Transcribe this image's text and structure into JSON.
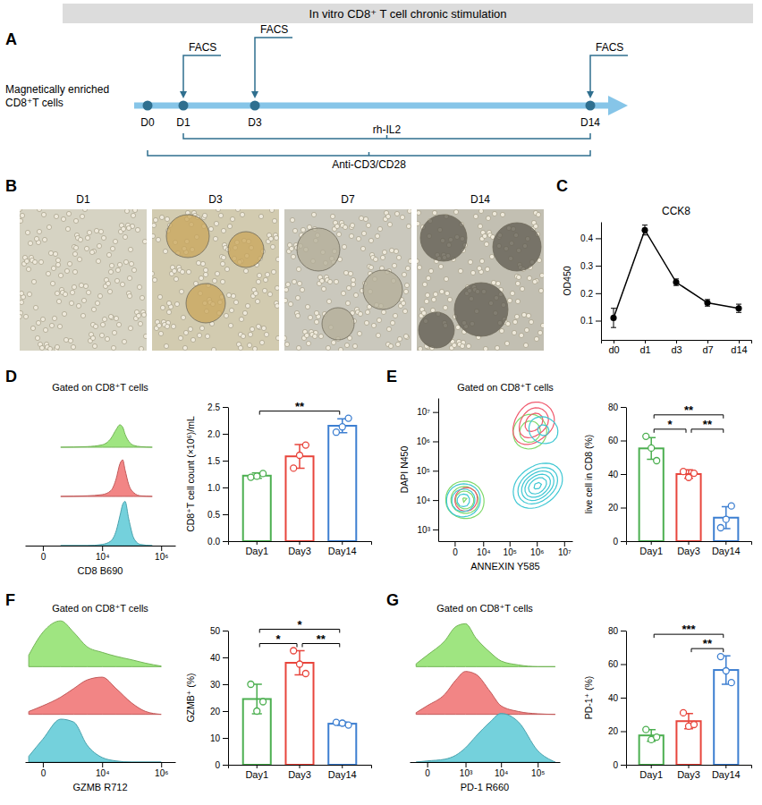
{
  "panels": [
    "A",
    "B",
    "C",
    "D",
    "E",
    "F",
    "G"
  ],
  "diagram": {
    "title": "In vitro CD8⁺ T cell chronic stimulation",
    "start_label": "Magnetically enriched CD8⁺T cells",
    "days": [
      "D0",
      "D1",
      "D3",
      "D14"
    ],
    "facs_label": "FACS",
    "facs_days": [
      "D1",
      "D3",
      "D14"
    ],
    "treatments": [
      {
        "label": "rh-IL2",
        "from": "D1",
        "to": "D14"
      },
      {
        "label": "Anti-CD3/CD28",
        "from": "D0",
        "to": "D14"
      }
    ]
  },
  "images": {
    "labels": [
      "D1",
      "D3",
      "D7",
      "D14"
    ]
  },
  "chart_data": [
    {
      "type": "line",
      "title": "CCK8",
      "y_label": "OD450",
      "categories": [
        "d0",
        "d1",
        "d3",
        "d7",
        "d14"
      ],
      "values": [
        0.11,
        0.43,
        0.24,
        0.165,
        0.145
      ],
      "errors": [
        0.035,
        0.018,
        0.012,
        0.012,
        0.015
      ],
      "ylim": [
        0.03,
        0.46
      ],
      "yticks": [
        0.1,
        0.2,
        0.3,
        0.4
      ],
      "color": "#000000",
      "marker": "circle"
    },
    {
      "type": "area",
      "title": "Gated on CD8⁺T cells",
      "x_label": "CD8 B690",
      "log": "x",
      "tick_labels": "x",
      "x": [
        300,
        3000,
        10000,
        20000,
        30000,
        40000,
        50000,
        60000,
        80000,
        120000,
        200000,
        500000
      ],
      "xlim": [
        -300,
        3000000
      ],
      "xticks": [
        0,
        {
          "value": 10000,
          "label": "10⁴"
        },
        {
          "value": 1000000,
          "label": "10⁶"
        }
      ],
      "ylim": [
        0,
        100
      ],
      "series": [
        {
          "color": "#8ee06b",
          "values": [
            0,
            1,
            4,
            15,
            30,
            38,
            34,
            22,
            10,
            3,
            1,
            0
          ]
        },
        {
          "color": "#f07070",
          "values": [
            0,
            1,
            3,
            10,
            30,
            55,
            62,
            45,
            20,
            6,
            1,
            0
          ]
        },
        {
          "color": "#5cc9d6",
          "values": [
            0,
            0,
            2,
            8,
            25,
            50,
            70,
            75,
            45,
            12,
            2,
            0
          ]
        }
      ]
    },
    {
      "type": "bar",
      "y_label": "CD8⁺T cell count (×10⁶)/mL",
      "categories": [
        "Day1",
        "Day3",
        "Day14"
      ],
      "values": [
        1.22,
        1.58,
        2.15
      ],
      "errors": [
        0.05,
        0.22,
        0.13
      ],
      "points": [
        [
          1.19,
          1.21,
          1.26
        ],
        [
          1.36,
          1.6,
          1.79
        ],
        [
          2.03,
          2.13,
          2.29
        ]
      ],
      "colors": [
        "#4caf50",
        "#e8453c",
        "#3d7fd1"
      ],
      "ylim": [
        0,
        2.5
      ],
      "yticks": [
        {
          "value": 0,
          "label": "0.0"
        },
        0.5,
        {
          "value": 1,
          "label": "1.0"
        },
        1.5,
        {
          "value": 2,
          "label": "2.0"
        },
        2.5
      ],
      "annotations": [
        {
          "text": "**",
          "between": [
            "Day1",
            "Day14"
          ]
        }
      ]
    },
    {
      "type": "contour",
      "title": "Gated on CD8⁺T cells",
      "x_label": "ANNEXIN Y585",
      "y_label": "DAPI N450",
      "log": true,
      "xlim": [
        -3000,
        20000000
      ],
      "ylim": [
        400,
        30000000
      ],
      "xticks": [
        0,
        {
          "value": 10000,
          "label": "10⁴"
        },
        {
          "value": 100000,
          "label": "10⁵"
        },
        {
          "value": 1000000,
          "label": "10⁶"
        },
        {
          "value": 10000000,
          "label": "10⁷"
        }
      ],
      "yticks": [
        {
          "value": 1000,
          "label": "10³"
        },
        {
          "value": 10000,
          "label": "10⁴"
        },
        {
          "value": 100000,
          "label": "10⁵"
        },
        {
          "value": 1000000,
          "label": "10⁶"
        },
        {
          "value": 10000000,
          "label": "10⁷"
        }
      ],
      "series": [
        {
          "color": "#7fd96a",
          "x": [
            200,
            800,
            1500,
            3000,
            500,
            2000,
            4000,
            1000,
            300000,
            500000,
            800000,
            400000,
            600000,
            1000000
          ],
          "y": [
            8000,
            12000,
            6000,
            10000,
            15000,
            20000,
            7000,
            9000,
            2000000,
            3000000,
            1500000,
            1000000,
            4000000,
            2500000
          ]
        },
        {
          "color": "#f05a6e",
          "x": [
            400000,
            700000,
            1000000,
            1500000,
            600000,
            2000000,
            900000,
            300000,
            1000,
            2500,
            1500,
            500000
          ],
          "y": [
            3000000,
            5000000,
            8000000,
            6000000,
            2000000,
            4000000,
            10000000,
            1500000,
            10000,
            15000,
            8000,
            4000000
          ]
        },
        {
          "color": "#3ec7d3",
          "x": [
            1000,
            2000,
            500,
            800000,
            1500000,
            2000000,
            1000000,
            3000000,
            600000,
            1200000,
            2500000,
            400000
          ],
          "y": [
            8000,
            12000,
            10000,
            30000,
            50000,
            40000,
            20000,
            60000,
            25000,
            3000000,
            2000000,
            15000
          ]
        }
      ]
    },
    {
      "type": "bar",
      "y_label": "live cell in CD8 (%)",
      "categories": [
        "Day1",
        "Day3",
        "Day14"
      ],
      "values": [
        55.3,
        40,
        14
      ],
      "errors": [
        6.5,
        2.5,
        6.5
      ],
      "points": [
        [
          62.5,
          55.5,
          48
        ],
        [
          41.5,
          38,
          40.5
        ],
        [
          8,
          13,
          21
        ]
      ],
      "colors": [
        "#4caf50",
        "#e8453c",
        "#3d7fd1"
      ],
      "ylim": [
        0,
        80
      ],
      "yticks": [
        0,
        20,
        40,
        60,
        80
      ],
      "annotations": [
        {
          "text": "*",
          "between": [
            "Day1",
            "Day3"
          ]
        },
        {
          "text": "**",
          "between": [
            "Day3",
            "Day14"
          ]
        },
        {
          "text": "**",
          "between": [
            "Day1",
            "Day14"
          ]
        }
      ]
    },
    {
      "type": "area",
      "title": "Gated on CD8⁺T cells",
      "x_label": "GZMB R712",
      "log": "x",
      "tick_labels": "x",
      "x": [
        -200,
        0,
        300,
        1000,
        3000,
        10000,
        30000,
        100000,
        300000,
        1000000
      ],
      "xlim": [
        -300,
        3000000
      ],
      "xticks": [
        0,
        {
          "value": 10000,
          "label": "10⁴"
        },
        {
          "value": 1000000,
          "label": "10⁶"
        }
      ],
      "ylim": [
        0,
        100
      ],
      "series": [
        {
          "color": "#8ee06b",
          "values": [
            20,
            60,
            80,
            60,
            35,
            25,
            18,
            12,
            6,
            1
          ]
        },
        {
          "color": "#f07070",
          "values": [
            5,
            15,
            30,
            45,
            60,
            65,
            45,
            20,
            5,
            0
          ]
        },
        {
          "color": "#5cc9d6",
          "values": [
            10,
            40,
            75,
            70,
            30,
            8,
            2,
            0,
            0,
            0
          ]
        }
      ]
    },
    {
      "type": "bar",
      "y_label": "GZMB⁺ (%)",
      "categories": [
        "Day1",
        "Day3",
        "Day14"
      ],
      "values": [
        24.5,
        38,
        15.3
      ],
      "errors": [
        5.5,
        4.5,
        0.6
      ],
      "points": [
        [
          30,
          20,
          23.5
        ],
        [
          42.5,
          37.5,
          34
        ],
        [
          15.8,
          15.5,
          14.8
        ]
      ],
      "colors": [
        "#4caf50",
        "#e8453c",
        "#3d7fd1"
      ],
      "ylim": [
        0,
        50
      ],
      "yticks": [
        0,
        10,
        20,
        30,
        40,
        50
      ],
      "annotations": [
        {
          "text": "*",
          "between": [
            "Day1",
            "Day3"
          ]
        },
        {
          "text": "**",
          "between": [
            "Day3",
            "Day14"
          ]
        },
        {
          "text": "*",
          "between": [
            "Day1",
            "Day14"
          ]
        }
      ]
    },
    {
      "type": "area",
      "title": "Gated on CD8⁺T cells",
      "x_label": "PD-1 R660",
      "log": "x",
      "tick_labels": "x",
      "x": [
        -100,
        0,
        200,
        500,
        1000,
        2000,
        5000,
        10000,
        30000,
        100000,
        300000
      ],
      "xlim": [
        -200,
        400000
      ],
      "xticks": [
        0,
        {
          "value": 1000,
          "label": "10³"
        },
        {
          "value": 10000,
          "label": "10⁴"
        },
        {
          "value": 100000,
          "label": "10⁵"
        }
      ],
      "ylim": [
        0,
        100
      ],
      "series": [
        {
          "color": "#8ee06b",
          "values": [
            5,
            20,
            45,
            70,
            75,
            50,
            25,
            10,
            3,
            0,
            0
          ]
        },
        {
          "color": "#f07070",
          "values": [
            3,
            15,
            35,
            60,
            75,
            70,
            40,
            15,
            5,
            1,
            0
          ]
        },
        {
          "color": "#5cc9d6",
          "values": [
            0,
            2,
            5,
            12,
            25,
            45,
            70,
            85,
            70,
            20,
            0
          ]
        }
      ]
    },
    {
      "type": "bar",
      "y_label": "PD-1⁺ (%)",
      "categories": [
        "Day1",
        "Day3",
        "Day14"
      ],
      "values": [
        17.5,
        26,
        56.5
      ],
      "errors": [
        3.5,
        4.5,
        8.5
      ],
      "points": [
        [
          21,
          15,
          16.5
        ],
        [
          31,
          23,
          24
        ],
        [
          64.5,
          56,
          49
        ]
      ],
      "colors": [
        "#4caf50",
        "#e8453c",
        "#3d7fd1"
      ],
      "ylim": [
        0,
        80
      ],
      "yticks": [
        0,
        20,
        40,
        60,
        80
      ],
      "annotations": [
        {
          "text": "**",
          "between": [
            "Day3",
            "Day14"
          ]
        },
        {
          "text": "***",
          "between": [
            "Day1",
            "Day14"
          ]
        }
      ]
    }
  ]
}
